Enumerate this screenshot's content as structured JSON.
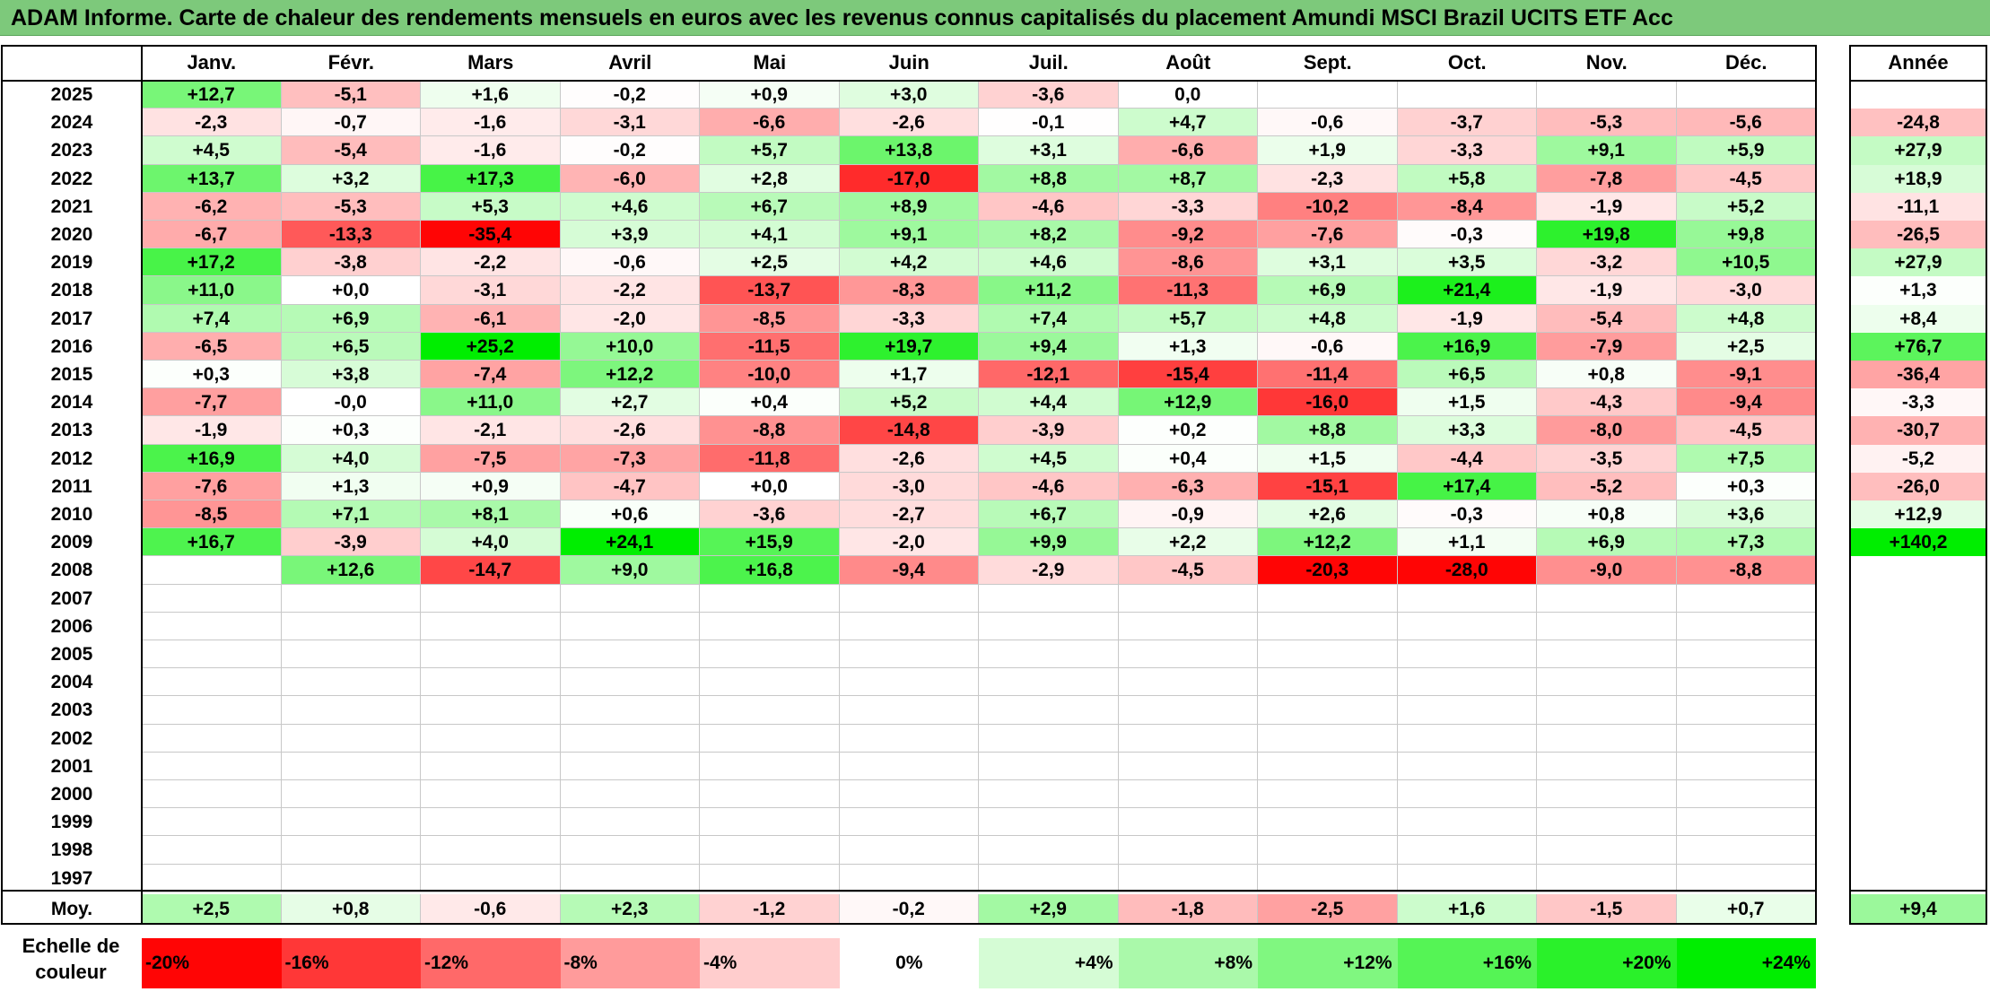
{
  "title": "ADAM Informe. Carte de chaleur des rendements mensuels en euros avec les revenus connus capitalisés du placement Amundi MSCI Brazil UCITS ETF Acc",
  "chart_data": {
    "type": "heatmap",
    "title": "ADAM Informe. Carte de chaleur des rendements mensuels en euros avec les revenus connus capitalisés du placement Amundi MSCI Brazil UCITS ETF Acc",
    "columns": [
      "Janv.",
      "Févr.",
      "Mars",
      "Avril",
      "Mai",
      "Juin",
      "Juil.",
      "Août",
      "Sept.",
      "Oct.",
      "Nov.",
      "Déc."
    ],
    "year_header": "Année",
    "rows": [
      {
        "year": "2025",
        "months": [
          "+12,7",
          "-5,1",
          "+1,6",
          "-0,2",
          "+0,9",
          "+3,0",
          "-3,6",
          "0,0",
          "",
          "",
          "",
          ""
        ],
        "annual": ""
      },
      {
        "year": "2024",
        "months": [
          "-2,3",
          "-0,7",
          "-1,6",
          "-3,1",
          "-6,6",
          "-2,6",
          "-0,1",
          "+4,7",
          "-0,6",
          "-3,7",
          "-5,3",
          "-5,6"
        ],
        "annual": "-24,8"
      },
      {
        "year": "2023",
        "months": [
          "+4,5",
          "-5,4",
          "-1,6",
          "-0,2",
          "+5,7",
          "+13,8",
          "+3,1",
          "-6,6",
          "+1,9",
          "-3,3",
          "+9,1",
          "+5,9"
        ],
        "annual": "+27,9"
      },
      {
        "year": "2022",
        "months": [
          "+13,7",
          "+3,2",
          "+17,3",
          "-6,0",
          "+2,8",
          "-17,0",
          "+8,8",
          "+8,7",
          "-2,3",
          "+5,8",
          "-7,8",
          "-4,5"
        ],
        "annual": "+18,9"
      },
      {
        "year": "2021",
        "months": [
          "-6,2",
          "-5,3",
          "+5,3",
          "+4,6",
          "+6,7",
          "+8,9",
          "-4,6",
          "-3,3",
          "-10,2",
          "-8,4",
          "-1,9",
          "+5,2"
        ],
        "annual": "-11,1"
      },
      {
        "year": "2020",
        "months": [
          "-6,7",
          "-13,3",
          "-35,4",
          "+3,9",
          "+4,1",
          "+9,1",
          "+8,2",
          "-9,2",
          "-7,6",
          "-0,3",
          "+19,8",
          "+9,8"
        ],
        "annual": "-26,5"
      },
      {
        "year": "2019",
        "months": [
          "+17,2",
          "-3,8",
          "-2,2",
          "-0,6",
          "+2,5",
          "+4,2",
          "+4,6",
          "-8,6",
          "+3,1",
          "+3,5",
          "-3,2",
          "+10,5"
        ],
        "annual": "+27,9"
      },
      {
        "year": "2018",
        "months": [
          "+11,0",
          "+0,0",
          "-3,1",
          "-2,2",
          "-13,7",
          "-8,3",
          "+11,2",
          "-11,3",
          "+6,9",
          "+21,4",
          "-1,9",
          "-3,0"
        ],
        "annual": "+1,3"
      },
      {
        "year": "2017",
        "months": [
          "+7,4",
          "+6,9",
          "-6,1",
          "-2,0",
          "-8,5",
          "-3,3",
          "+7,4",
          "+5,7",
          "+4,8",
          "-1,9",
          "-5,4",
          "+4,8"
        ],
        "annual": "+8,4"
      },
      {
        "year": "2016",
        "months": [
          "-6,5",
          "+6,5",
          "+25,2",
          "+10,0",
          "-11,5",
          "+19,7",
          "+9,4",
          "+1,3",
          "-0,6",
          "+16,9",
          "-7,9",
          "+2,5"
        ],
        "annual": "+76,7"
      },
      {
        "year": "2015",
        "months": [
          "+0,3",
          "+3,8",
          "-7,4",
          "+12,2",
          "-10,0",
          "+1,7",
          "-12,1",
          "-15,4",
          "-11,4",
          "+6,5",
          "+0,8",
          "-9,1"
        ],
        "annual": "-36,4"
      },
      {
        "year": "2014",
        "months": [
          "-7,7",
          "-0,0",
          "+11,0",
          "+2,7",
          "+0,4",
          "+5,2",
          "+4,4",
          "+12,9",
          "-16,0",
          "+1,5",
          "-4,3",
          "-9,4"
        ],
        "annual": "-3,3"
      },
      {
        "year": "2013",
        "months": [
          "-1,9",
          "+0,3",
          "-2,1",
          "-2,6",
          "-8,8",
          "-14,8",
          "-3,9",
          "+0,2",
          "+8,8",
          "+3,3",
          "-8,0",
          "-4,5"
        ],
        "annual": "-30,7"
      },
      {
        "year": "2012",
        "months": [
          "+16,9",
          "+4,0",
          "-7,5",
          "-7,3",
          "-11,8",
          "-2,6",
          "+4,5",
          "+0,4",
          "+1,5",
          "-4,4",
          "-3,5",
          "+7,5"
        ],
        "annual": "-5,2"
      },
      {
        "year": "2011",
        "months": [
          "-7,6",
          "+1,3",
          "+0,9",
          "-4,7",
          "+0,0",
          "-3,0",
          "-4,6",
          "-6,3",
          "-15,1",
          "+17,4",
          "-5,2",
          "+0,3"
        ],
        "annual": "-26,0"
      },
      {
        "year": "2010",
        "months": [
          "-8,5",
          "+7,1",
          "+8,1",
          "+0,6",
          "-3,6",
          "-2,7",
          "+6,7",
          "-0,9",
          "+2,6",
          "-0,3",
          "+0,8",
          "+3,6"
        ],
        "annual": "+12,9"
      },
      {
        "year": "2009",
        "months": [
          "+16,7",
          "-3,9",
          "+4,0",
          "+24,1",
          "+15,9",
          "-2,0",
          "+9,9",
          "+2,2",
          "+12,2",
          "+1,1",
          "+6,9",
          "+7,3"
        ],
        "annual": "+140,2"
      },
      {
        "year": "2008",
        "months": [
          "",
          "+12,6",
          "-14,7",
          "+9,0",
          "+16,8",
          "-9,4",
          "-2,9",
          "-4,5",
          "-20,3",
          "-28,0",
          "-9,0",
          "-8,8"
        ],
        "annual": ""
      },
      {
        "year": "2007",
        "months": [
          "",
          "",
          "",
          "",
          "",
          "",
          "",
          "",
          "",
          "",
          "",
          ""
        ],
        "annual": ""
      },
      {
        "year": "2006",
        "months": [
          "",
          "",
          "",
          "",
          "",
          "",
          "",
          "",
          "",
          "",
          "",
          ""
        ],
        "annual": ""
      },
      {
        "year": "2005",
        "months": [
          "",
          "",
          "",
          "",
          "",
          "",
          "",
          "",
          "",
          "",
          "",
          ""
        ],
        "annual": ""
      },
      {
        "year": "2004",
        "months": [
          "",
          "",
          "",
          "",
          "",
          "",
          "",
          "",
          "",
          "",
          "",
          ""
        ],
        "annual": ""
      },
      {
        "year": "2003",
        "months": [
          "",
          "",
          "",
          "",
          "",
          "",
          "",
          "",
          "",
          "",
          "",
          ""
        ],
        "annual": ""
      },
      {
        "year": "2002",
        "months": [
          "",
          "",
          "",
          "",
          "",
          "",
          "",
          "",
          "",
          "",
          "",
          ""
        ],
        "annual": ""
      },
      {
        "year": "2001",
        "months": [
          "",
          "",
          "",
          "",
          "",
          "",
          "",
          "",
          "",
          "",
          "",
          ""
        ],
        "annual": ""
      },
      {
        "year": "2000",
        "months": [
          "",
          "",
          "",
          "",
          "",
          "",
          "",
          "",
          "",
          "",
          "",
          ""
        ],
        "annual": ""
      },
      {
        "year": "1999",
        "months": [
          "",
          "",
          "",
          "",
          "",
          "",
          "",
          "",
          "",
          "",
          "",
          ""
        ],
        "annual": ""
      },
      {
        "year": "1998",
        "months": [
          "",
          "",
          "",
          "",
          "",
          "",
          "",
          "",
          "",
          "",
          "",
          ""
        ],
        "annual": ""
      },
      {
        "year": "1997",
        "months": [
          "",
          "",
          "",
          "",
          "",
          "",
          "",
          "",
          "",
          "",
          "",
          ""
        ],
        "annual": ""
      }
    ],
    "average": {
      "label": "Moy.",
      "months": [
        "+2,5",
        "+0,8",
        "-0,6",
        "+2,3",
        "-1,2",
        "-0,2",
        "+2,9",
        "-1,8",
        "-2,5",
        "+1,6",
        "-1,5",
        "+0,7"
      ],
      "annual": "+9,4"
    },
    "scale": {
      "label_line1": "Echelle de",
      "label_line2": "couleur",
      "stops": [
        "-20%",
        "-16%",
        "-12%",
        "-8%",
        "-4%",
        "0%",
        "+4%",
        "+8%",
        "+12%",
        "+16%",
        "+20%",
        "+24%"
      ]
    },
    "colors": {
      "title_bg": "#7dc97b",
      "negative_max": "#ff0000",
      "neutral": "#ffffff",
      "positive_max": "#00ee00"
    }
  }
}
